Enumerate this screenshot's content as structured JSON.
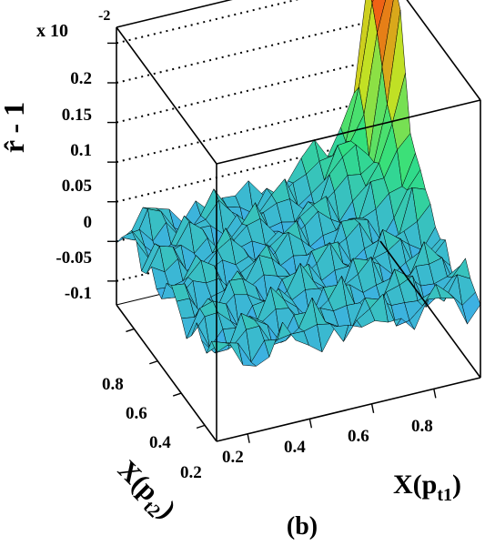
{
  "chart_data": {
    "type": "surface3d",
    "panel_label": "(b)",
    "z_multiplier": "x 10",
    "z_multiplier_exp": "-2",
    "zlabel": "r̂ - 1",
    "x_label_main": "X(p",
    "x_label_sub": "t1",
    "x_label_close": ")",
    "y_label_main": "X(p",
    "y_label_sub": "t2",
    "y_label_close": ")",
    "x_ticks": [
      "0.2",
      "0.4",
      "0.6",
      "0.8"
    ],
    "y_ticks": [
      "0.2",
      "0.4",
      "0.6",
      "0.8"
    ],
    "z_ticks": [
      "0.2",
      "0.15",
      "0.1",
      "0.05",
      "0",
      "-0.05",
      "-0.1"
    ],
    "x_tick_values": [
      0.2,
      0.4,
      0.6,
      0.8
    ],
    "y_tick_values": [
      0.2,
      0.4,
      0.6,
      0.8
    ],
    "z_tick_values": [
      0.2,
      0.15,
      0.1,
      0.05,
      0,
      -0.05,
      -0.1
    ],
    "xlim": [
      0.1,
      0.95
    ],
    "ylim": [
      0.1,
      0.95
    ],
    "zlim": [
      -0.13,
      0.22
    ],
    "grid_z": true,
    "colormap": [
      "#3a6fe0",
      "#3fc8f0",
      "#2fe080",
      "#c8e020",
      "#ff3010"
    ]
  }
}
